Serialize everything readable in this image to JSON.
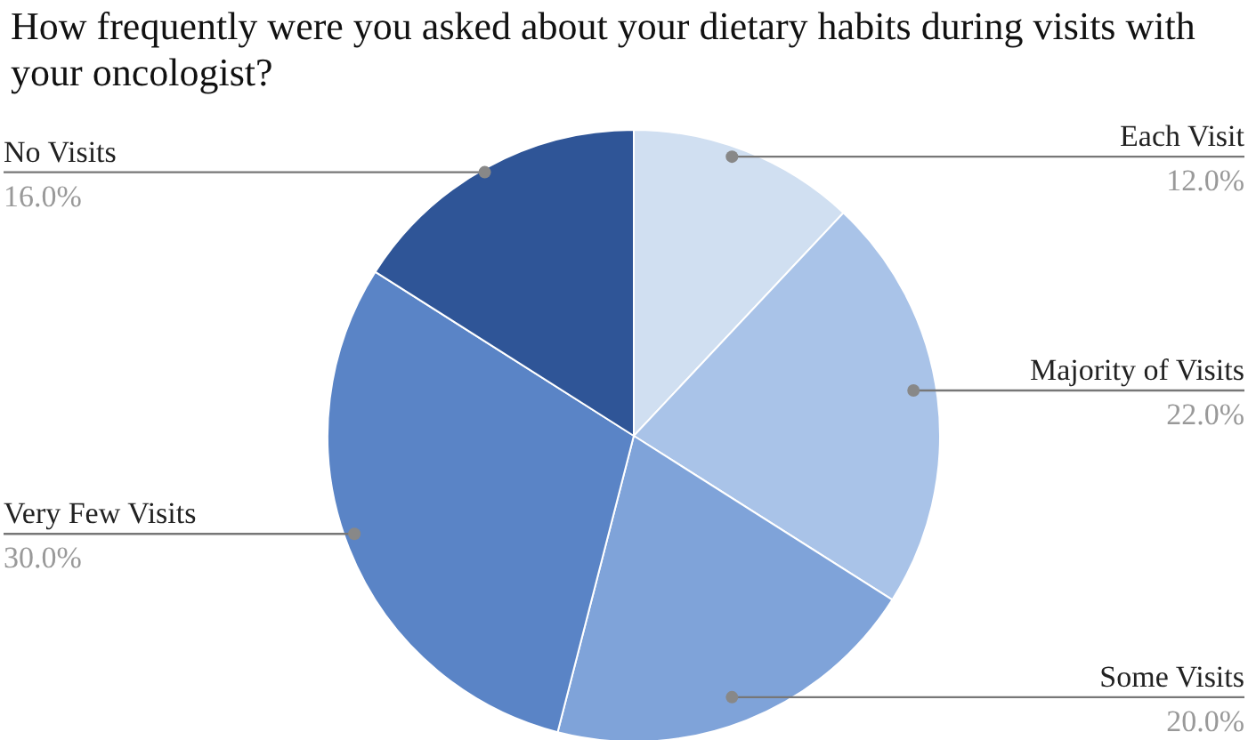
{
  "chart_data": {
    "type": "pie",
    "title": "How frequently were you asked about your dietary habits during visits with your oncologist?",
    "categories": [
      "Each Visit",
      "Majority of Visits",
      "Some Visits",
      "Very Few Visits",
      "No Visits"
    ],
    "values": [
      12,
      22,
      20,
      30,
      16
    ],
    "value_labels": [
      "12.0%",
      "22.0%",
      "20.0%",
      "30.0%",
      "16.0%"
    ],
    "colors": [
      "#d0dff1",
      "#a9c3e8",
      "#7fa3d9",
      "#5a84c6",
      "#2f5597"
    ]
  }
}
